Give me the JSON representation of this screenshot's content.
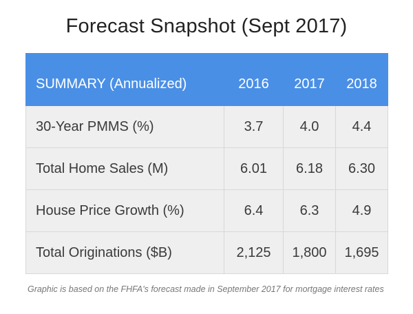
{
  "title": "Forecast Snapshot (Sept 2017)",
  "chart_data": {
    "type": "table",
    "title": "Forecast Snapshot (Sept 2017)",
    "header": [
      "SUMMARY (Annualized)",
      "2016",
      "2017",
      "2018"
    ],
    "rows": [
      [
        "30-Year PMMS (%)",
        "3.7",
        "4.0",
        "4.4"
      ],
      [
        "Total Home Sales (M)",
        "6.01",
        "6.18",
        "6.30"
      ],
      [
        "House Price Growth (%)",
        "6.4",
        "6.3",
        "4.9"
      ],
      [
        "Total Originations ($B)",
        "2,125",
        "1,800",
        "1,695"
      ]
    ],
    "colors": {
      "header_bg": "#4a8fe6",
      "header_text": "#ffffff",
      "cell_bg": "#efefef",
      "border": "#d8d8d8"
    }
  },
  "footnote": "Graphic is based on the FHFA's forecast made in September 2017 for mortgage interest rates"
}
